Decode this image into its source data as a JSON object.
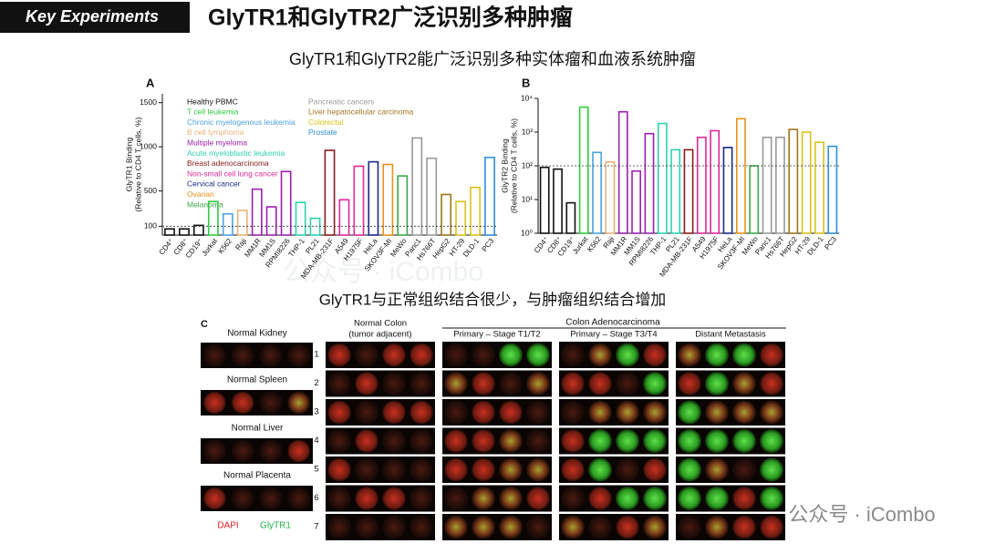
{
  "slide": {
    "tag": "Key Experiments",
    "title": "GlyTR1和GlyTR2广泛识别多种肿瘤",
    "subtitle": "GlyTR1和GlyTR2能广泛识别多种实体瘤和血液系统肿瘤",
    "middle_text": "GlyTR1与正常组织结合很少，与肿瘤组织结合增加",
    "watermark": "公众号 · iCombo",
    "panel_c": {
      "letter": "C",
      "normal_tissues": [
        "Normal Kidney",
        "Normal Spleen",
        "Normal Liver",
        "Normal Placenta"
      ],
      "colon_header": "Colon Adenocarcinoma",
      "columns": [
        [
          "Normal Colon",
          "(tumor adjacent)"
        ],
        "Primary – Stage T1/T2",
        "Primary – Stage T3/T4",
        "Distant Metastasis"
      ],
      "rows": [
        "1",
        "2",
        "3",
        "4",
        "5",
        "6",
        "7"
      ],
      "stain_legend": [
        {
          "name": "DAPI",
          "color": "#e02020"
        },
        {
          "name": "GlyTR1",
          "color": "#22b14c"
        }
      ]
    }
  },
  "chart_data": [
    {
      "type": "bar",
      "panel": "A",
      "y_label": [
        "GlyTR1 Binding",
        "(Relative to CD4 T cells, %)"
      ],
      "categories": [
        "CD4⁺",
        "CD8⁺",
        "CD19⁺",
        "Jurkat",
        "K562",
        "Raji",
        "MM1R",
        "MM1S",
        "RPMI8226",
        "THP-1",
        "PL21",
        "MDA-MB-231F",
        "A549",
        "H1975F",
        "HeLa",
        "SKOV3F-MI",
        "MeWo",
        "Panc1",
        "Hs766T",
        "HepG2",
        "HT-29",
        "DLD-1",
        "PC3"
      ],
      "values": [
        70,
        70,
        110,
        380,
        240,
        280,
        520,
        320,
        720,
        370,
        190,
        960,
        400,
        780,
        830,
        800,
        670,
        1100,
        870,
        460,
        380,
        540,
        880
      ],
      "colors": [
        "#111111",
        "#111111",
        "#111111",
        "#2ecc40",
        "#4aa3df",
        "#e8b27a",
        "#9b1fb0",
        "#9b1fb0",
        "#9b1fb0",
        "#2fd1b0",
        "#2fd1b0",
        "#8b1a1a",
        "#e0289a",
        "#e0289a",
        "#1c2a8a",
        "#e8921c",
        "#3aa84a",
        "#999999",
        "#999999",
        "#a0761c",
        "#d9c21c",
        "#d9c21c",
        "#2e8fd9"
      ],
      "ylim": [
        0,
        1600
      ],
      "yticks": [
        100,
        500,
        1000,
        1500
      ],
      "reference_line": 100,
      "legend": [
        {
          "name": "Healthy PBMC",
          "color": "#111111"
        },
        {
          "name": "T cell leukemia",
          "color": "#2ecc40"
        },
        {
          "name": "Chronic myelogenous leukemia",
          "color": "#4aa3df"
        },
        {
          "name": "B cell lymphoma",
          "color": "#e8b27a"
        },
        {
          "name": "Multiple myeloma",
          "color": "#9b1fb0"
        },
        {
          "name": "Acute myeloblastic leukemia",
          "color": "#2fd1b0"
        },
        {
          "name": "Breast adenocarcinoma",
          "color": "#8b1a1a"
        },
        {
          "name": "Non-small cell lung cancer",
          "color": "#e0289a"
        },
        {
          "name": "Cervical cancer",
          "color": "#1c2a8a"
        },
        {
          "name": "Ovarian",
          "color": "#e8921c"
        },
        {
          "name": "Melanoma",
          "color": "#3aa84a"
        },
        {
          "name": "Pancreatic cancers",
          "color": "#999999"
        },
        {
          "name": "Liver hepatocellular carcinoma",
          "color": "#a0761c"
        },
        {
          "name": "Colorectal",
          "color": "#d9c21c"
        },
        {
          "name": "Prostate",
          "color": "#2e8fd9"
        }
      ]
    },
    {
      "type": "bar",
      "panel": "B",
      "log_scale": true,
      "y_label": [
        "GlyTR2 Binding",
        "(Relative to CD4 T cells, %)"
      ],
      "categories": [
        "CD4⁺",
        "CD8⁺",
        "CD19⁺",
        "Jurkat",
        "K562",
        "Raji",
        "MM1R",
        "MM1S",
        "RPMI8226",
        "THP-1",
        "PL21",
        "MDA-MB-231F",
        "A549",
        "H1975F",
        "HeLa",
        "SKOV3F-MI",
        "MeWo",
        "Panc1",
        "Hs766T",
        "HepG2",
        "HT-29",
        "DLD-1",
        "PC3"
      ],
      "values": [
        90,
        80,
        8,
        5500,
        250,
        130,
        4000,
        70,
        900,
        1800,
        300,
        300,
        700,
        1100,
        350,
        2500,
        100,
        700,
        700,
        1200,
        1000,
        500,
        380
      ],
      "colors": [
        "#111111",
        "#111111",
        "#111111",
        "#2ecc40",
        "#4aa3df",
        "#e8b27a",
        "#9b1fb0",
        "#9b1fb0",
        "#9b1fb0",
        "#2fd1b0",
        "#2fd1b0",
        "#8b1a1a",
        "#e0289a",
        "#e0289a",
        "#1c2a8a",
        "#e8921c",
        "#3aa84a",
        "#999999",
        "#999999",
        "#a0761c",
        "#d9c21c",
        "#d9c21c",
        "#2e8fd9"
      ],
      "ylim": [
        1,
        10000
      ],
      "yticks": [
        {
          "value": 1,
          "label": "10⁰"
        },
        {
          "value": 10,
          "label": "10¹"
        },
        {
          "value": 100,
          "label": "10²"
        },
        {
          "value": 1000,
          "label": "10³"
        },
        {
          "value": 10000,
          "label": "10⁴"
        }
      ],
      "reference_line": 100
    }
  ]
}
